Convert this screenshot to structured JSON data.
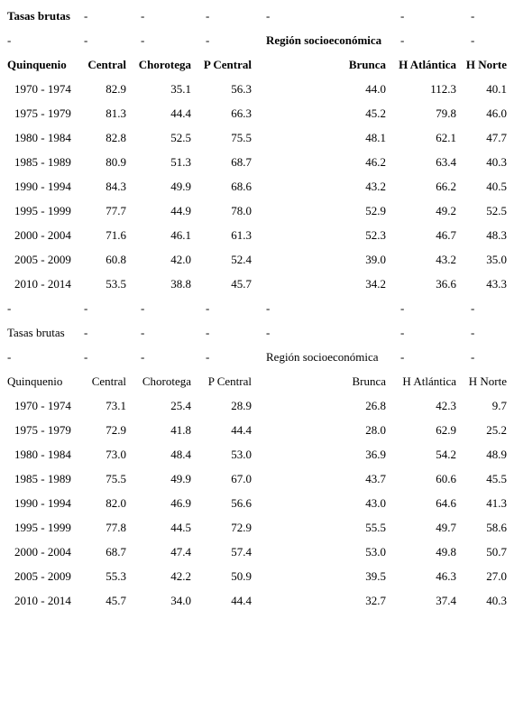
{
  "dash": "-",
  "sections": [
    {
      "title": "Tasas brutas",
      "region_label": "Región socioeconómica",
      "columns": [
        "Quinquenio",
        "Central",
        "Chorotega",
        "P Central",
        "Brunca",
        "H Atlántica",
        "H Norte"
      ],
      "rows": [
        [
          "1970 - 1974",
          "82.9",
          "35.1",
          "56.3",
          "44.0",
          "112.3",
          "40.1"
        ],
        [
          "1975 - 1979",
          "81.3",
          "44.4",
          "66.3",
          "45.2",
          "79.8",
          "46.0"
        ],
        [
          "1980 - 1984",
          "82.8",
          "52.5",
          "75.5",
          "48.1",
          "62.1",
          "47.7"
        ],
        [
          "1985 - 1989",
          "80.9",
          "51.3",
          "68.7",
          "46.2",
          "63.4",
          "40.3"
        ],
        [
          "1990 - 1994",
          "84.3",
          "49.9",
          "68.6",
          "43.2",
          "66.2",
          "40.5"
        ],
        [
          "1995 - 1999",
          "77.7",
          "44.9",
          "78.0",
          "52.9",
          "49.2",
          "52.5"
        ],
        [
          "2000 - 2004",
          "71.6",
          "46.1",
          "61.3",
          "52.3",
          "46.7",
          "48.3"
        ],
        [
          "2005 - 2009",
          "60.8",
          "42.0",
          "52.4",
          "39.0",
          "43.2",
          "35.0"
        ],
        [
          "2010 - 2014",
          "53.5",
          "38.8",
          "45.7",
          "34.2",
          "36.6",
          "43.3"
        ]
      ]
    },
    {
      "title": "Tasas brutas",
      "region_label": "Región socioeconómica",
      "columns": [
        "Quinquenio",
        "Central",
        "Chorotega",
        "P Central",
        "Brunca",
        "H Atlántica",
        "H Norte"
      ],
      "rows": [
        [
          "1970 - 1974",
          "73.1",
          "25.4",
          "28.9",
          "26.8",
          "42.3",
          "9.7"
        ],
        [
          "1975 - 1979",
          "72.9",
          "41.8",
          "44.4",
          "28.0",
          "62.9",
          "25.2"
        ],
        [
          "1980 - 1984",
          "73.0",
          "48.4",
          "53.0",
          "36.9",
          "54.2",
          "48.9"
        ],
        [
          "1985 - 1989",
          "75.5",
          "49.9",
          "67.0",
          "43.7",
          "60.6",
          "45.5"
        ],
        [
          "1990 - 1994",
          "82.0",
          "46.9",
          "56.6",
          "43.0",
          "64.6",
          "41.3"
        ],
        [
          "1995 - 1999",
          "77.8",
          "44.5",
          "72.9",
          "55.5",
          "49.7",
          "58.6"
        ],
        [
          "2000 - 2004",
          "68.7",
          "47.4",
          "57.4",
          "53.0",
          "49.8",
          "50.7"
        ],
        [
          "2005 - 2009",
          "55.3",
          "42.2",
          "50.9",
          "39.5",
          "46.3",
          "27.0"
        ],
        [
          "2010 - 2014",
          "45.7",
          "34.0",
          "44.4",
          "32.7",
          "37.4",
          "40.3"
        ]
      ]
    }
  ]
}
